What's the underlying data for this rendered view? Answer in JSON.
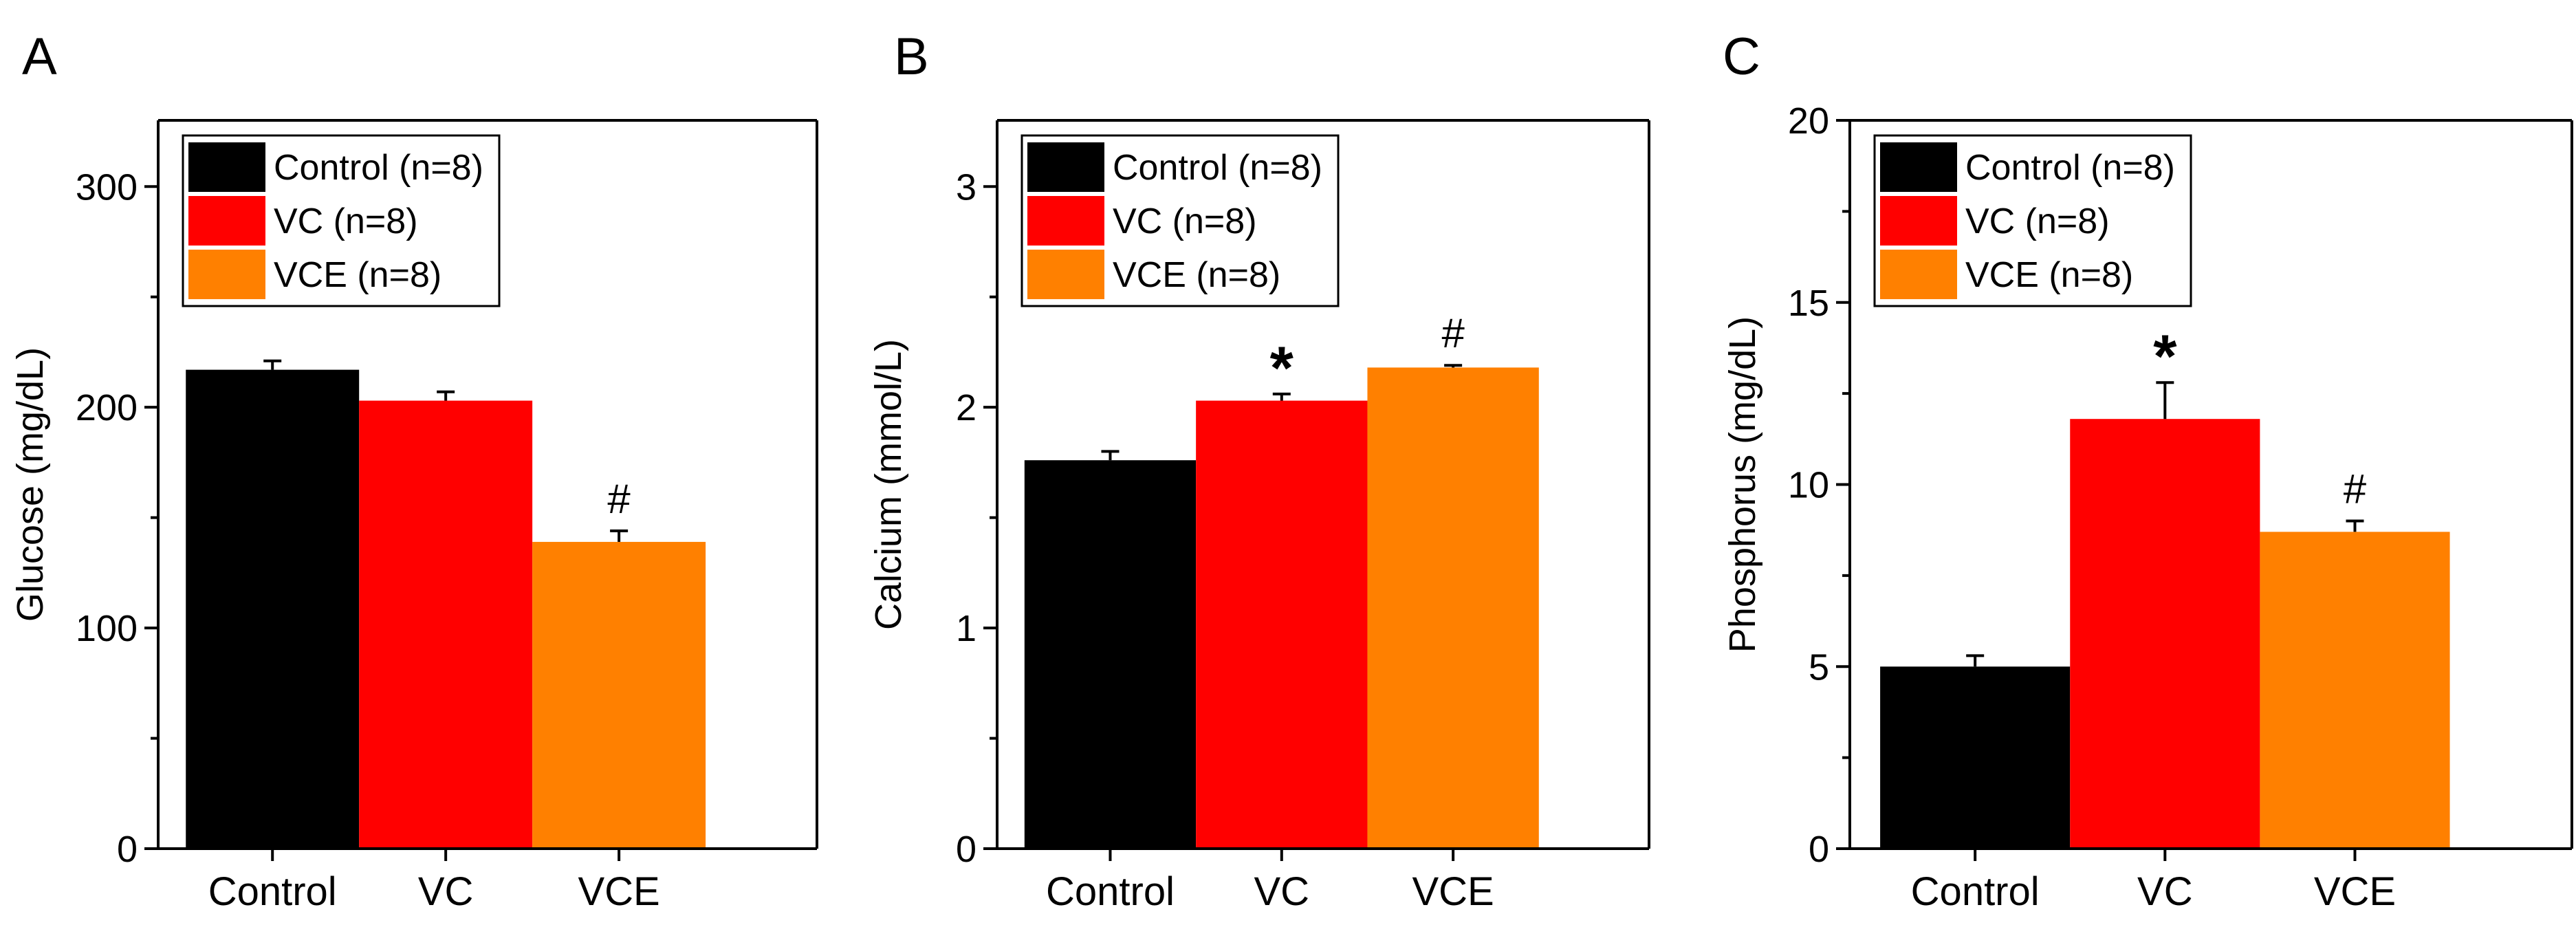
{
  "chart_data": [
    {
      "type": "bar",
      "panel": "A",
      "categories": [
        "Control",
        "VC",
        "VCE"
      ],
      "values": [
        217,
        203,
        139
      ],
      "errors": [
        4,
        4,
        5
      ],
      "ylabel": "Glucose (mg/dL)",
      "xlabel": "",
      "ylim": [
        0,
        330
      ],
      "yticks": [
        0,
        100,
        200,
        300
      ],
      "annotations": [
        "",
        "",
        "#"
      ],
      "legend": [
        "Control (n=8)",
        "VC (n=8)",
        "VCE (n=8)"
      ],
      "legend_position": "top-left"
    },
    {
      "type": "bar",
      "panel": "B",
      "categories": [
        "Control",
        "VC",
        "VCE"
      ],
      "values": [
        1.76,
        2.03,
        2.18
      ],
      "errors": [
        0.04,
        0.03,
        0.01
      ],
      "ylabel": "Calcium (mmol/L)",
      "xlabel": "",
      "ylim": [
        0,
        3.3
      ],
      "yticks": [
        0,
        1,
        2,
        3
      ],
      "annotations": [
        "",
        "*",
        "#"
      ],
      "legend": [
        "Control (n=8)",
        "VC (n=8)",
        "VCE (n=8)"
      ],
      "legend_position": "top-left"
    },
    {
      "type": "bar",
      "panel": "C",
      "categories": [
        "Control",
        "VC",
        "VCE"
      ],
      "values": [
        5.0,
        11.8,
        8.7
      ],
      "errors": [
        0.3,
        1.0,
        0.3
      ],
      "ylabel": "Phosphorus (mg/dL)",
      "xlabel": "",
      "ylim": [
        0,
        20
      ],
      "yticks": [
        0,
        5,
        10,
        15,
        20
      ],
      "annotations": [
        "",
        "*",
        "#"
      ],
      "legend": [
        "Control (n=8)",
        "VC (n=8)",
        "VCE (n=8)"
      ],
      "legend_position": "top-left"
    }
  ],
  "colors": {
    "control": "#000000",
    "vc": "#ff0000",
    "vce": "#ff8000"
  }
}
